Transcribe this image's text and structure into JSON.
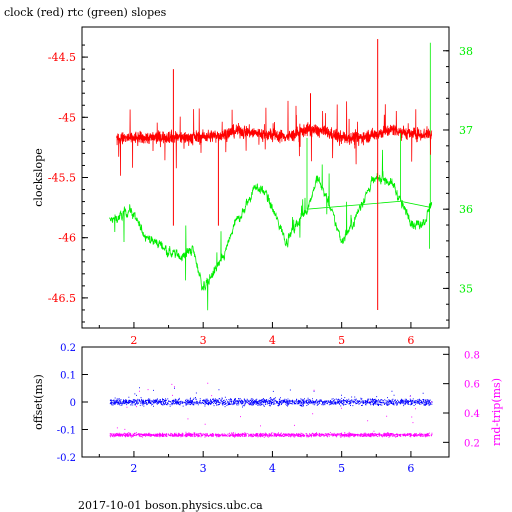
{
  "title": "clock (red) rtc (green) slopes",
  "footer": "2017-10-01 boson.physics.ubc.ca",
  "colors": {
    "red": "#ff0000",
    "green": "#00ee00",
    "blue": "#0000ff",
    "magenta": "#ff00ff",
    "axis": "#000000"
  },
  "chart_data": [
    {
      "type": "line",
      "title": "clock (red) rtc (green) slopes",
      "xlim": [
        1.25,
        6.55
      ],
      "x_ticks": [
        2,
        3,
        4,
        5,
        6
      ],
      "x_tick_labels": [
        "2",
        "3",
        "4",
        "5",
        "6"
      ],
      "ylabel": "clockslope",
      "ylim": [
        -46.75,
        -44.25
      ],
      "y_ticks": [
        -44.5,
        -45,
        -45.5,
        -46,
        -46.5
      ],
      "y_tick_labels": [
        "-44.5",
        "-45",
        "-45.5",
        "-46",
        "-46.5"
      ],
      "y2lim": [
        34.5,
        38.3
      ],
      "y2_ticks": [
        35,
        36,
        37,
        38
      ],
      "y2_tick_labels": [
        "35",
        "36",
        "37",
        "38"
      ],
      "grid": false,
      "series": [
        {
          "name": "clock",
          "axis": "left",
          "color": "#ff0000",
          "x": [
            1.75,
            2.0,
            2.25,
            2.5,
            2.75,
            3.0,
            3.25,
            3.5,
            3.75,
            4.0,
            4.25,
            4.5,
            4.75,
            5.0,
            5.25,
            5.5,
            5.75,
            6.0,
            6.3
          ],
          "values": [
            -45.18,
            -45.17,
            -45.17,
            -45.16,
            -45.17,
            -45.16,
            -45.15,
            -45.11,
            -45.13,
            -45.15,
            -45.16,
            -45.1,
            -45.12,
            -45.17,
            -45.17,
            -45.14,
            -45.1,
            -45.14,
            -45.14
          ]
        },
        {
          "name": "rtc",
          "axis": "right",
          "color": "#00ee00",
          "x": [
            1.65,
            1.8,
            1.95,
            2.1,
            2.25,
            2.4,
            2.55,
            2.7,
            2.85,
            3.0,
            3.15,
            3.3,
            3.45,
            3.6,
            3.75,
            3.9,
            4.05,
            4.2,
            4.35,
            4.5,
            4.65,
            4.8,
            4.9,
            5.0,
            5.15,
            5.3,
            5.45,
            5.6,
            5.75,
            5.9,
            6.05,
            6.2,
            6.3
          ],
          "values": [
            35.85,
            35.9,
            36.0,
            35.75,
            35.6,
            35.55,
            35.45,
            35.4,
            35.5,
            35.0,
            35.2,
            35.4,
            35.8,
            36.0,
            36.3,
            36.2,
            35.9,
            35.6,
            35.8,
            36.0,
            36.4,
            36.1,
            35.85,
            35.6,
            35.8,
            36.1,
            36.35,
            36.4,
            36.3,
            36.0,
            35.8,
            35.85,
            36.1
          ]
        }
      ]
    },
    {
      "type": "scatter",
      "xlim": [
        1.25,
        6.55
      ],
      "x_ticks": [
        2,
        3,
        4,
        5,
        6
      ],
      "x_tick_labels": [
        "2",
        "3",
        "4",
        "5",
        "6"
      ],
      "ylabel": "offset(ms)",
      "ylim": [
        -0.2,
        0.2
      ],
      "y_ticks": [
        0.2,
        0.1,
        0,
        -0.1,
        -0.2
      ],
      "y_tick_labels": [
        "0.2",
        "0.1",
        "0",
        "-0.1",
        "-0.2"
      ],
      "y2label": "rnd-trip(ms)",
      "y2lim": [
        0.1,
        0.85
      ],
      "y2_ticks": [
        0.8,
        0.6,
        0.4,
        0.2
      ],
      "y2_tick_labels": [
        "0.8",
        "0.6",
        "0.4",
        "0.2"
      ],
      "grid": false,
      "series": [
        {
          "name": "offset",
          "axis": "left",
          "color": "#0000ff",
          "x": [
            1.65,
            2.0,
            2.5,
            3.0,
            3.5,
            4.0,
            4.5,
            5.0,
            5.5,
            6.0,
            6.3
          ],
          "values": [
            0.0,
            0.0,
            0.0,
            0.0,
            0.0,
            0.0,
            0.0,
            0.0,
            0.0,
            0.0,
            0.0
          ],
          "spread": 0.02
        },
        {
          "name": "rnd-trip",
          "axis": "right",
          "color": "#ff00ff",
          "x": [
            1.65,
            2.0,
            2.5,
            3.0,
            3.5,
            4.0,
            4.5,
            5.0,
            5.5,
            6.0,
            6.3
          ],
          "values": [
            0.25,
            0.25,
            0.25,
            0.25,
            0.25,
            0.25,
            0.25,
            0.25,
            0.25,
            0.25,
            0.25
          ],
          "spread": 0.02
        }
      ]
    }
  ]
}
